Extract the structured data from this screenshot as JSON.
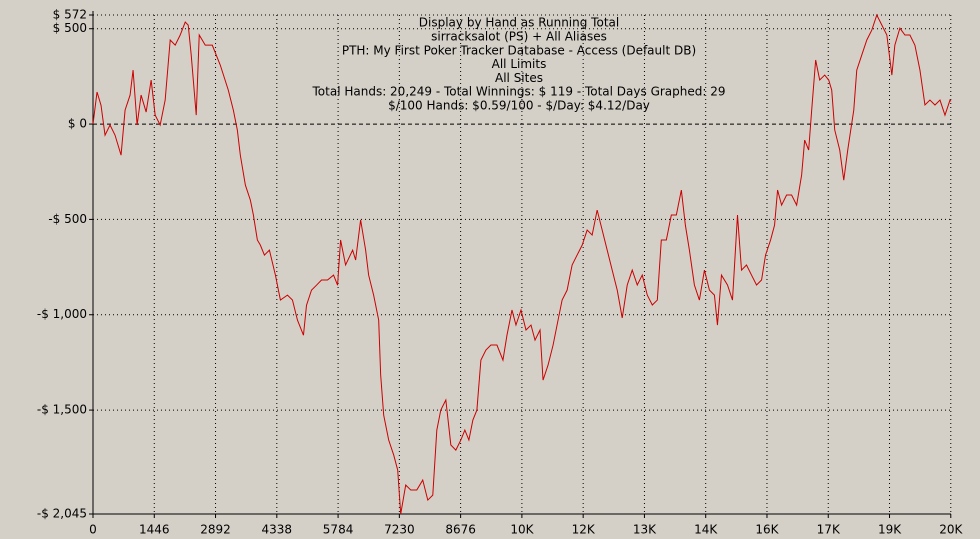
{
  "chart_data": {
    "type": "line",
    "title": "Display by Hand as Running Total",
    "subtitle_lines": [
      "sirracksalot (PS) + All Aliases",
      "PTH: My First Poker Tracker Database - Access (Default DB)",
      "All Limits",
      "All Sites",
      "Total Hands: 20,249 - Total Winnings: $ 119 - Total Days Graphed: 29",
      "$/100 Hands: $0.59/100 - $/Day: $4.12/Day"
    ],
    "background": "#d4d0c8",
    "grid": true,
    "xlim": [
      0,
      20249
    ],
    "ylim": [
      -2045,
      572
    ],
    "xticks": [
      0,
      1446,
      2892,
      4338,
      5784,
      7230,
      8676,
      {
        "value": 10122,
        "label": "10K"
      },
      {
        "value": 11568,
        "label": "12K"
      },
      {
        "value": 13014,
        "label": "13K"
      },
      {
        "value": 14460,
        "label": "14K"
      },
      {
        "value": 15906,
        "label": "16K"
      },
      {
        "value": 17352,
        "label": "17K"
      },
      {
        "value": 18798,
        "label": "19K"
      },
      {
        "value": 20244,
        "label": "20K"
      }
    ],
    "yticks": [
      {
        "value": 572,
        "label": "$ 572"
      },
      {
        "value": 500,
        "label": "$ 500"
      },
      {
        "value": 0,
        "label": "$ 0"
      },
      {
        "value": -500,
        "label": "-$ 500"
      },
      {
        "value": -1000,
        "label": "-$ 1,000"
      },
      {
        "value": -1500,
        "label": "-$ 1,500"
      },
      {
        "value": -2045,
        "label": "-$ 2,045"
      }
    ],
    "x": [
      0,
      95,
      189,
      284,
      402,
      520,
      662,
      757,
      875,
      946,
      1041,
      1135,
      1254,
      1372,
      1467,
      1585,
      1703,
      1822,
      1940,
      2058,
      2177,
      2247,
      2318,
      2436,
      2507,
      2649,
      2815,
      3004,
      3193,
      3312,
      3406,
      3477,
      3596,
      3714,
      3785,
      3879,
      3950,
      4045,
      4163,
      4305,
      4423,
      4589,
      4707,
      4825,
      4967,
      5039,
      5157,
      5275,
      5393,
      5535,
      5677,
      5772,
      5843,
      5961,
      6127,
      6198,
      6316,
      6434,
      6505,
      6623,
      6742,
      6789,
      6860,
      6978,
      7097,
      7191,
      7262,
      7380,
      7499,
      7641,
      7782,
      7901,
      8019,
      8114,
      8208,
      8327,
      8445,
      8563,
      8681,
      8776,
      8871,
      8965,
      9060,
      9154,
      9273,
      9391,
      9533,
      9675,
      9770,
      9888,
      9982,
      10101,
      10219,
      10337,
      10432,
      10550,
      10621,
      10739,
      10858,
      10952,
      11071,
      11189,
      11307,
      11425,
      11544,
      11662,
      11780,
      11898,
      12017,
      12135,
      12253,
      12372,
      12490,
      12608,
      12726,
      12845,
      12963,
      13081,
      13200,
      13318,
      13412,
      13531,
      13649,
      13767,
      13885,
      13980,
      14075,
      14193,
      14311,
      14430,
      14548,
      14666,
      14737,
      14832,
      14974,
      15092,
      15210,
      15305,
      15423,
      15541,
      15660,
      15778,
      15872,
      15991,
      16085,
      16156,
      16251,
      16369,
      16487,
      16606,
      16724,
      16795,
      16890,
      16961,
      17055,
      17150,
      17268,
      17363,
      17434,
      17505,
      17623,
      17718,
      17812,
      17883,
      17954,
      18025,
      18143,
      18262,
      18380,
      18498,
      18617,
      18735,
      18853,
      18924,
      19043,
      19161,
      19279,
      19397,
      19516,
      19634,
      19752,
      19871,
      19989,
      20107,
      20225,
      20249
    ],
    "series": [
      {
        "color": "#cc0000",
        "values": [
          0,
          168,
          99,
          -58,
          -5,
          -58,
          -163,
          73,
          152,
          283,
          -5,
          152,
          63,
          231,
          47,
          -5,
          126,
          441,
          414,
          467,
          535,
          519,
          362,
          47,
          467,
          414,
          414,
          309,
          178,
          73,
          -31,
          -163,
          -320,
          -399,
          -477,
          -608,
          -635,
          -687,
          -661,
          -792,
          -923,
          -897,
          -923,
          -1028,
          -1107,
          -950,
          -871,
          -845,
          -818,
          -818,
          -792,
          -845,
          -608,
          -739,
          -661,
          -713,
          -503,
          -661,
          -792,
          -897,
          -1028,
          -1316,
          -1526,
          -1657,
          -1736,
          -1815,
          -2045,
          -1893,
          -1919,
          -1919,
          -1867,
          -1972,
          -1946,
          -1605,
          -1500,
          -1447,
          -1683,
          -1710,
          -1657,
          -1605,
          -1657,
          -1552,
          -1500,
          -1238,
          -1185,
          -1159,
          -1159,
          -1238,
          -1107,
          -975,
          -1054,
          -975,
          -1080,
          -1054,
          -1133,
          -1080,
          -1343,
          -1264,
          -1159,
          -1054,
          -923,
          -871,
          -739,
          -687,
          -635,
          -556,
          -582,
          -451,
          -556,
          -661,
          -766,
          -871,
          -1017,
          -844,
          -766,
          -844,
          -792,
          -897,
          -949,
          -923,
          -608,
          -608,
          -477,
          -477,
          -346,
          -530,
          -661,
          -844,
          -923,
          -766,
          -871,
          -897,
          -1054,
          -792,
          -844,
          -923,
          -477,
          -766,
          -739,
          -792,
          -844,
          -818,
          -687,
          -608,
          -530,
          -346,
          -425,
          -372,
          -372,
          -425,
          -267,
          -84,
          -136,
          73,
          336,
          231,
          257,
          231,
          178,
          -31,
          -136,
          -294,
          -136,
          -31,
          73,
          283,
          362,
          441,
          493,
          572,
          519,
          467,
          257,
          414,
          503,
          467,
          467,
          414,
          283,
          100,
          126,
          100,
          126,
          47,
          126,
          119
        ]
      }
    ]
  }
}
